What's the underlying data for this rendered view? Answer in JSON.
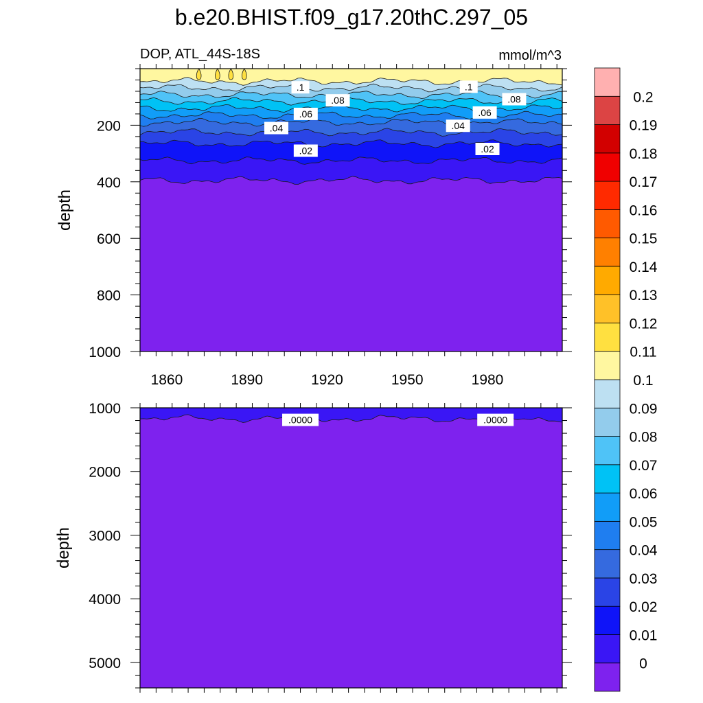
{
  "title": "b.e20.BHIST.f09_g17.20thC.297_05",
  "chart_data": {
    "type": "heatmap",
    "variable_label": "DOP, ATL_44S-18S",
    "units_label": "mmol/m^3",
    "x_axis": {
      "range": [
        1850,
        2008
      ],
      "tick_labels": [
        "1860",
        "1890",
        "1920",
        "1950",
        "1980"
      ]
    },
    "colorbar": {
      "labels": [
        "0",
        "0.01",
        "0.02",
        "0.03",
        "0.04",
        "0.05",
        "0.06",
        "0.07",
        "0.08",
        "0.09",
        "0.1",
        "0.11",
        "0.12",
        "0.13",
        "0.14",
        "0.15",
        "0.16",
        "0.17",
        "0.18",
        "0.19",
        "0.2"
      ],
      "colors": [
        "#7e22ee",
        "#3a16f5",
        "#0f14f8",
        "#2a44e6",
        "#356adf",
        "#1f7ef0",
        "#119df8",
        "#00c2f5",
        "#4fc3f7",
        "#93ccec",
        "#bde0f2",
        "#fff7a0",
        "#ffe040",
        "#ffc128",
        "#ffaa00",
        "#ff8000",
        "#ff5a00",
        "#ff2a00",
        "#f00000",
        "#d20000",
        "#dc4444",
        "#ffb0b0"
      ]
    },
    "panels": [
      {
        "name": "upper",
        "ylabel": "depth",
        "y_range": [
          0,
          1000
        ],
        "y_tick_labels": [
          "200",
          "400",
          "600",
          "800",
          "1000"
        ],
        "mean_isolines_depth_m": [
          {
            "level": 0.11,
            "depth": 45
          },
          {
            "level": 0.1,
            "depth": 68
          },
          {
            "level": 0.09,
            "depth": 92
          },
          {
            "level": 0.08,
            "depth": 115
          },
          {
            "level": 0.07,
            "depth": 140
          },
          {
            "level": 0.06,
            "depth": 165
          },
          {
            "level": 0.05,
            "depth": 190
          },
          {
            "level": 0.04,
            "depth": 225
          },
          {
            "level": 0.03,
            "depth": 265
          },
          {
            "level": 0.02,
            "depth": 325
          },
          {
            "level": 0.01,
            "depth": 395
          }
        ],
        "contour_labels": [
          {
            "text": ".1",
            "year": 1910,
            "depth": 66
          },
          {
            "text": ".1",
            "year": 1973,
            "depth": 64
          },
          {
            "text": ".08",
            "year": 1924,
            "depth": 112
          },
          {
            "text": ".08",
            "year": 1990,
            "depth": 108
          },
          {
            "text": ".06",
            "year": 1912,
            "depth": 160
          },
          {
            "text": ".06",
            "year": 1979,
            "depth": 155
          },
          {
            "text": ".04",
            "year": 1901,
            "depth": 210
          },
          {
            "text": ".04",
            "year": 1969,
            "depth": 202
          },
          {
            "text": ".02",
            "year": 1912,
            "depth": 290
          },
          {
            "text": ".02",
            "year": 1980,
            "depth": 284
          }
        ]
      },
      {
        "name": "lower",
        "ylabel": "depth",
        "y_range": [
          1000,
          5400
        ],
        "y_tick_labels": [
          "1000",
          "2000",
          "3000",
          "4000",
          "5000"
        ],
        "mean_isolines_depth_m": [
          {
            "level": 0.0,
            "depth": 1170
          }
        ],
        "contour_labels": [
          {
            "text": ".0000",
            "year": 1910,
            "depth": 1190
          },
          {
            "text": ".0000",
            "year": 1983,
            "depth": 1190
          }
        ]
      }
    ]
  }
}
